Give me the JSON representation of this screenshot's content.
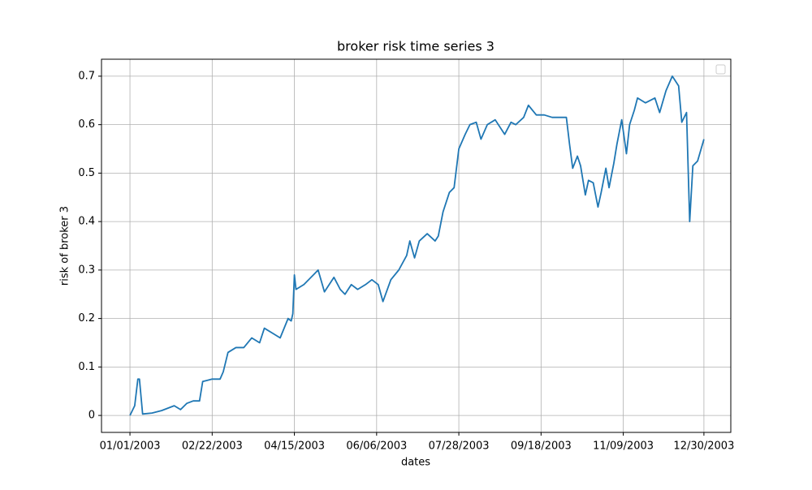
{
  "chart_data": {
    "type": "line",
    "title": "broker risk time series 3",
    "x_label": "dates",
    "y_label": "risk of broker 3",
    "x": [
      "01/01/2003",
      "01/04/2003",
      "01/06/2003",
      "01/07/2003",
      "01/09/2003",
      "01/15/2003",
      "01/21/2003",
      "01/25/2003",
      "01/29/2003",
      "02/02/2003",
      "02/06/2003",
      "02/10/2003",
      "02/14/2003",
      "02/16/2003",
      "02/22/2003",
      "02/27/2003",
      "03/01/2003",
      "03/04/2003",
      "03/09/2003",
      "03/14/2003",
      "03/19/2003",
      "03/24/2003",
      "03/27/2003",
      "04/01/2003",
      "04/06/2003",
      "04/11/2003",
      "04/13/2003",
      "04/14/2003",
      "04/15/2003",
      "04/16/2003",
      "04/21/2003",
      "04/27/2003",
      "04/30/2003",
      "05/04/2003",
      "05/10/2003",
      "05/14/2003",
      "05/17/2003",
      "05/21/2003",
      "05/25/2003",
      "05/30/2003",
      "06/03/2003",
      "06/07/2003",
      "06/10/2003",
      "06/15/2003",
      "06/20/2003",
      "06/25/2003",
      "06/27/2003",
      "06/30/2003",
      "07/03/2003",
      "07/08/2003",
      "07/13/2003",
      "07/15/2003",
      "07/18/2003",
      "07/22/2003",
      "07/25/2003",
      "07/28/2003",
      "08/01/2003",
      "08/04/2003",
      "08/08/2003",
      "08/11/2003",
      "08/15/2003",
      "08/20/2003",
      "08/26/2003",
      "08/30/2003",
      "09/02/2003",
      "09/07/2003",
      "09/10/2003",
      "09/15/2003",
      "09/20/2003",
      "09/25/2003",
      "09/30/2003",
      "10/04/2003",
      "10/06/2003",
      "10/08/2003",
      "10/11/2003",
      "10/13/2003",
      "10/16/2003",
      "10/18/2003",
      "10/21/2003",
      "10/24/2003",
      "10/26/2003",
      "10/29/2003",
      "10/31/2003",
      "11/03/2003",
      "11/05/2003",
      "11/08/2003",
      "11/11/2003",
      "11/13/2003",
      "11/16/2003",
      "11/18/2003",
      "11/23/2003",
      "11/29/2003",
      "12/02/2003",
      "12/06/2003",
      "12/10/2003",
      "12/14/2003",
      "12/16/2003",
      "12/19/2003",
      "12/21/2003",
      "12/23/2003",
      "12/26/2003",
      "12/30/2003"
    ],
    "series": [
      {
        "color": "#1f77b4",
        "values": [
          0.0,
          0.02,
          0.075,
          0.075,
          0.003,
          0.005,
          0.01,
          0.015,
          0.02,
          0.012,
          0.025,
          0.03,
          0.03,
          0.07,
          0.075,
          0.075,
          0.09,
          0.13,
          0.14,
          0.14,
          0.16,
          0.15,
          0.18,
          0.17,
          0.16,
          0.2,
          0.195,
          0.21,
          0.29,
          0.26,
          0.27,
          0.29,
          0.3,
          0.255,
          0.285,
          0.26,
          0.25,
          0.27,
          0.26,
          0.27,
          0.28,
          0.27,
          0.235,
          0.28,
          0.3,
          0.33,
          0.36,
          0.325,
          0.36,
          0.375,
          0.36,
          0.37,
          0.42,
          0.46,
          0.47,
          0.55,
          0.58,
          0.6,
          0.605,
          0.57,
          0.6,
          0.61,
          0.58,
          0.605,
          0.6,
          0.615,
          0.64,
          0.62,
          0.62,
          0.615,
          0.615,
          0.615,
          0.56,
          0.51,
          0.535,
          0.515,
          0.455,
          0.485,
          0.48,
          0.43,
          0.46,
          0.51,
          0.47,
          0.52,
          0.56,
          0.61,
          0.54,
          0.6,
          0.63,
          0.655,
          0.645,
          0.655,
          0.625,
          0.67,
          0.7,
          0.68,
          0.605,
          0.625,
          0.4,
          0.515,
          0.525,
          0.57
        ]
      }
    ],
    "xlim": [
      "12/14/2002",
      "01/16/2004"
    ],
    "xticks": [
      "01/01/2003",
      "02/22/2003",
      "04/15/2003",
      "06/06/2003",
      "07/28/2003",
      "09/18/2003",
      "11/09/2003",
      "12/30/2003"
    ],
    "ylim": [
      -0.035,
      0.735
    ],
    "yticks": [
      0.0,
      0.1,
      0.2,
      0.3,
      0.4,
      0.5,
      0.6,
      0.7
    ],
    "grid": true
  }
}
